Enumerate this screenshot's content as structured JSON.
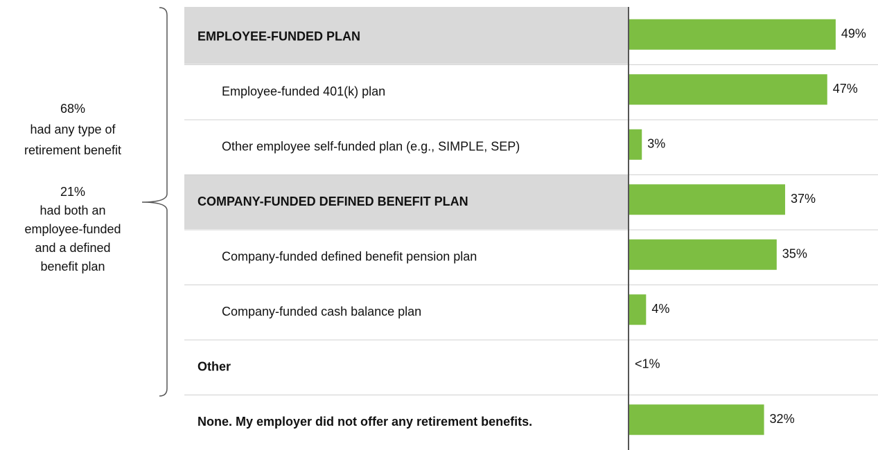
{
  "chart_data": {
    "type": "barh",
    "categories": [
      "EMPLOYEE-FUNDED PLAN",
      "Employee-funded 401(k) plan",
      "Other employee self-funded plan (e.g., SIMPLE, SEP)",
      "COMPANY-FUNDED DEFINED BENEFIT PLAN",
      "Company-funded defined benefit pension plan",
      "Company-funded cash balance plan",
      "Other",
      "None. My employer did not offer any retirement benefits."
    ],
    "row_styles": [
      "header",
      "sub",
      "sub",
      "header",
      "sub",
      "sub",
      "bold",
      "bold"
    ],
    "values": [
      49,
      47,
      3,
      37,
      35,
      4,
      0,
      32
    ],
    "value_labels": [
      "49%",
      "47%",
      "3%",
      "37%",
      "35%",
      "4%",
      "<1%",
      "32%"
    ],
    "color": "#7dbe42",
    "xlim": [
      0,
      100
    ],
    "annotation": {
      "lines_1": [
        "68%",
        "had any type of",
        "retirement benefit"
      ],
      "lines_2": [
        "21%",
        "had both an",
        "employee-funded",
        "and a defined",
        "benefit plan"
      ]
    }
  }
}
